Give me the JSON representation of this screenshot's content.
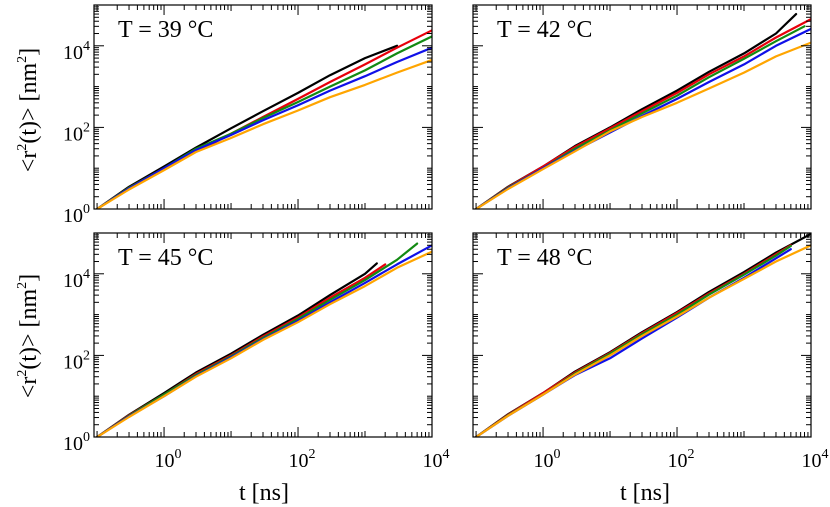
{
  "figure": {
    "xlabel": "t [ns]",
    "ylabel_main": "<r",
    "ylabel_sup": "2",
    "ylabel_rest": "(t)> [nm",
    "ylabel_unit_sup": "2",
    "ylabel_close": "]"
  },
  "ticks": {
    "x": [
      {
        "base": "10",
        "exp": "0"
      },
      {
        "base": "10",
        "exp": "2"
      },
      {
        "base": "10",
        "exp": "4"
      }
    ],
    "y": [
      {
        "base": "10",
        "exp": "0"
      },
      {
        "base": "10",
        "exp": "2"
      },
      {
        "base": "10",
        "exp": "4"
      }
    ]
  },
  "colors": {
    "black": "#000000",
    "red": "#e8000b",
    "green": "#138a13",
    "blue": "#1010e8",
    "orange": "#ffa500"
  },
  "chart_data": [
    {
      "type": "line",
      "title": "T = 39 °C",
      "xscale": "log",
      "yscale": "log",
      "xlim": [
        0.09,
        10000
      ],
      "ylim": [
        1,
        100000
      ],
      "xlabel": "",
      "ylabel": "<r^2(t)> [nm^2]",
      "series": [
        {
          "name": "black",
          "color": "#000000",
          "x": [
            0.1,
            0.3,
            1,
            3,
            10,
            30,
            100,
            300,
            1000,
            3000
          ],
          "y": [
            1,
            3.5,
            11,
            32,
            95,
            250,
            700,
            1900,
            5000,
            10000
          ]
        },
        {
          "name": "red",
          "color": "#e8000b",
          "x": [
            0.1,
            0.3,
            1,
            3,
            5,
            10,
            30,
            100,
            300,
            1000,
            3000,
            10000
          ],
          "y": [
            1,
            3.3,
            10,
            28,
            38,
            70,
            180,
            500,
            1300,
            3500,
            9000,
            24000
          ]
        },
        {
          "name": "green",
          "color": "#138a13",
          "x": [
            0.1,
            0.3,
            1,
            3,
            10,
            30,
            100,
            300,
            1000,
            3000,
            10000
          ],
          "y": [
            1,
            3.3,
            10,
            30,
            70,
            170,
            420,
            1000,
            2500,
            6500,
            17000
          ]
        },
        {
          "name": "blue",
          "color": "#1010e8",
          "x": [
            0.1,
            0.3,
            1,
            3,
            10,
            30,
            100,
            300,
            1000,
            3000,
            10000
          ],
          "y": [
            1,
            3.2,
            10,
            28,
            65,
            150,
            350,
            800,
            1800,
            4000,
            9000
          ]
        },
        {
          "name": "orange",
          "color": "#ffa500",
          "x": [
            0.1,
            0.3,
            1,
            3,
            10,
            30,
            100,
            300,
            1000,
            3000,
            10000
          ],
          "y": [
            1,
            3,
            9,
            25,
            55,
            120,
            260,
            550,
            1100,
            2200,
            4500
          ]
        }
      ]
    },
    {
      "type": "line",
      "title": "T = 42 °C",
      "xscale": "log",
      "yscale": "log",
      "xlim": [
        0.09,
        10000
      ],
      "ylim": [
        1,
        100000
      ],
      "xlabel": "",
      "ylabel": "",
      "series": [
        {
          "name": "black",
          "color": "#000000",
          "x": [
            0.1,
            0.3,
            1,
            3,
            10,
            30,
            100,
            300,
            1000,
            3000,
            6000
          ],
          "y": [
            1,
            3.5,
            11,
            35,
            100,
            280,
            800,
            2300,
            6500,
            20000,
            60000
          ]
        },
        {
          "name": "red",
          "color": "#e8000b",
          "x": [
            0.1,
            0.3,
            1,
            3,
            10,
            30,
            100,
            300,
            1000,
            3000,
            10000
          ],
          "y": [
            1,
            3.4,
            11,
            33,
            95,
            250,
            700,
            2000,
            5500,
            16000,
            45000
          ]
        },
        {
          "name": "green",
          "color": "#138a13",
          "x": [
            0.1,
            0.3,
            1,
            3,
            10,
            30,
            100,
            300,
            1000,
            3000,
            8000
          ],
          "y": [
            1,
            3.3,
            10,
            30,
            85,
            220,
            600,
            1700,
            4800,
            13000,
            30000
          ]
        },
        {
          "name": "blue",
          "color": "#1010e8",
          "x": [
            0.1,
            0.3,
            1,
            3,
            10,
            30,
            100,
            300,
            1000,
            3000,
            10000
          ],
          "y": [
            1,
            3.2,
            10,
            27,
            75,
            190,
            500,
            1300,
            3500,
            10000,
            26000
          ]
        },
        {
          "name": "orange",
          "color": "#ffa500",
          "x": [
            0.1,
            0.3,
            1,
            3,
            10,
            30,
            100,
            300,
            1000,
            3000,
            10000
          ],
          "y": [
            1,
            3.1,
            9.5,
            26,
            80,
            180,
            400,
            900,
            2200,
            5500,
            12000
          ]
        }
      ]
    },
    {
      "type": "line",
      "title": "T = 45 °C",
      "xscale": "log",
      "yscale": "log",
      "xlim": [
        0.09,
        10000
      ],
      "ylim": [
        1,
        100000
      ],
      "xlabel": "t [ns]",
      "ylabel": "<r^2(t)> [nm^2]",
      "series": [
        {
          "name": "black",
          "color": "#000000",
          "x": [
            0.1,
            0.3,
            1,
            3,
            10,
            30,
            100,
            300,
            1000,
            1500
          ],
          "y": [
            1,
            3.5,
            12,
            38,
            110,
            320,
            950,
            3000,
            10000,
            18000
          ]
        },
        {
          "name": "red",
          "color": "#e8000b",
          "x": [
            0.1,
            0.3,
            1,
            3,
            10,
            30,
            100,
            300,
            1000,
            2000
          ],
          "y": [
            1,
            3.4,
            11,
            35,
            100,
            290,
            850,
            2600,
            8000,
            17000
          ]
        },
        {
          "name": "green",
          "color": "#138a13",
          "x": [
            0.1,
            0.3,
            1,
            3,
            10,
            30,
            100,
            300,
            1000,
            3000,
            6000
          ],
          "y": [
            1,
            3.3,
            11,
            33,
            95,
            270,
            780,
            2300,
            7000,
            22000,
            55000
          ]
        },
        {
          "name": "blue",
          "color": "#1010e8",
          "x": [
            0.1,
            0.3,
            1,
            3,
            10,
            30,
            100,
            300,
            1000,
            3000,
            10000
          ],
          "y": [
            1,
            3.2,
            10,
            31,
            90,
            250,
            700,
            2000,
            6000,
            17000,
            50000
          ]
        },
        {
          "name": "orange",
          "color": "#ffa500",
          "x": [
            0.1,
            0.3,
            1,
            3,
            10,
            30,
            100,
            300,
            1000,
            3000,
            10000
          ],
          "y": [
            1,
            3.1,
            10,
            30,
            85,
            240,
            650,
            1800,
            5000,
            14000,
            35000
          ]
        }
      ]
    },
    {
      "type": "line",
      "title": "T = 48 °C",
      "xscale": "log",
      "yscale": "log",
      "xlim": [
        0.09,
        10000
      ],
      "ylim": [
        1,
        100000
      ],
      "xlabel": "t [ns]",
      "ylabel": "",
      "series": [
        {
          "name": "black",
          "color": "#000000",
          "x": [
            0.1,
            0.3,
            1,
            3,
            10,
            30,
            100,
            300,
            1000,
            3000,
            10000
          ],
          "y": [
            1,
            3.6,
            12,
            40,
            120,
            370,
            1150,
            3600,
            11000,
            33000,
            95000
          ]
        },
        {
          "name": "red",
          "color": "#e8000b",
          "x": [
            0.1,
            0.3,
            1,
            3,
            10,
            30,
            100,
            300,
            1000,
            3000,
            5000
          ],
          "y": [
            1,
            3.5,
            12,
            38,
            115,
            350,
            1100,
            3300,
            10000,
            30000,
            50000
          ]
        },
        {
          "name": "green",
          "color": "#138a13",
          "x": [
            0.1,
            0.3,
            1,
            3,
            10,
            30,
            100,
            300,
            1000,
            3000,
            5000
          ],
          "y": [
            1,
            3.4,
            11,
            36,
            110,
            330,
            1000,
            3100,
            9500,
            28000,
            48000
          ]
        },
        {
          "name": "blue",
          "color": "#1010e8",
          "x": [
            0.1,
            0.3,
            1,
            3,
            10,
            30,
            100,
            300,
            1000,
            3000,
            5000
          ],
          "y": [
            1,
            3.3,
            11,
            33,
            85,
            260,
            850,
            2600,
            8000,
            24000,
            40000
          ]
        },
        {
          "name": "orange",
          "color": "#ffa500",
          "x": [
            0.1,
            0.3,
            1,
            3,
            10,
            30,
            100,
            300,
            1000,
            3000,
            10000
          ],
          "y": [
            1,
            3.3,
            11,
            34,
            100,
            300,
            900,
            2600,
            7500,
            20000,
            50000
          ]
        }
      ]
    }
  ]
}
